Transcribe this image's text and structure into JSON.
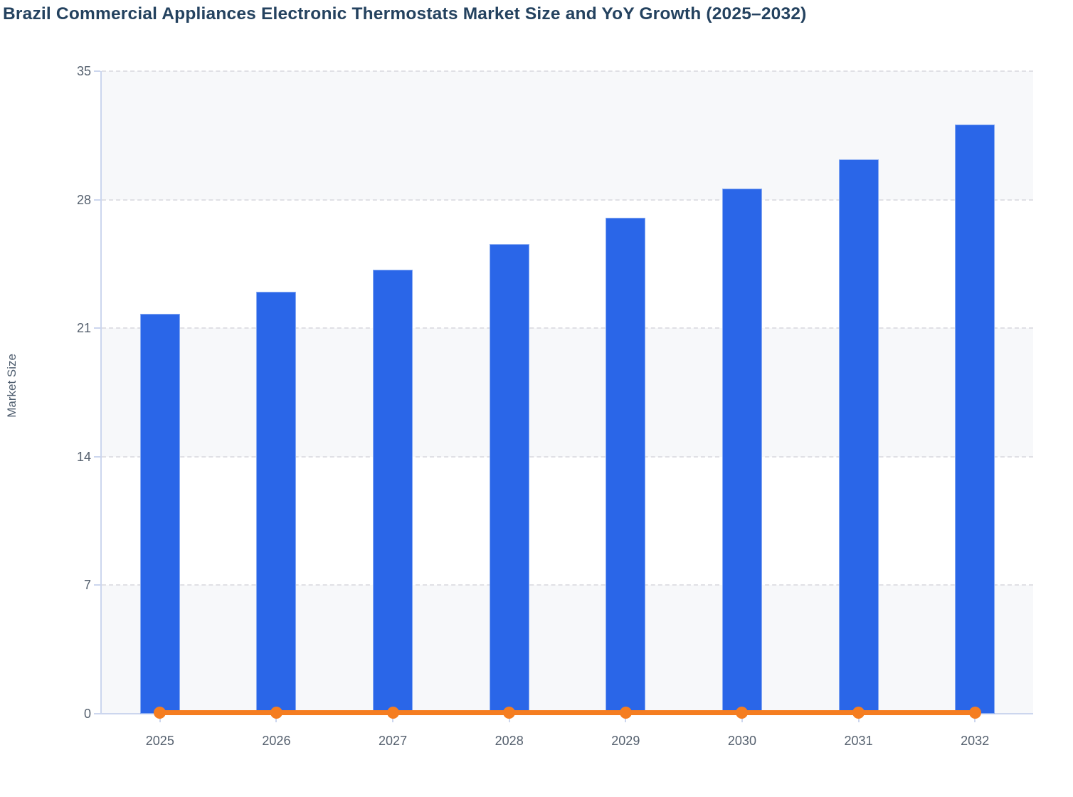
{
  "title": "Brazil Commercial Appliances Electronic Thermostats Market Size and YoY Growth (2025–2032)",
  "chart_data": {
    "type": "bar",
    "title": "Brazil Commercial Appliances Electronic Thermostats Market Size and YoY Growth (2025–2032)",
    "categories": [
      "2025",
      "2026",
      "2027",
      "2028",
      "2029",
      "2030",
      "2031",
      "2032"
    ],
    "series": [
      {
        "name": "Market Size",
        "type": "bar",
        "values": [
          21.8,
          23.0,
          24.2,
          25.6,
          27.0,
          28.6,
          30.2,
          32.1
        ]
      },
      {
        "name": "YoY Growth",
        "type": "line",
        "values": [
          0,
          0,
          0,
          0,
          0,
          0,
          0,
          0
        ]
      }
    ],
    "xlabel": "",
    "ylabel": "Market Size",
    "ylim": [
      0,
      35
    ],
    "yticks": [
      0,
      7,
      14,
      21,
      28,
      35
    ],
    "grid": "horizontal dashed gridlines with alternating shaded bands",
    "legend": "none",
    "colors": {
      "bar": "#2a66e8",
      "line": "#f57d20",
      "title_text": "#24425f",
      "tick_text": "#55606e",
      "axis_line": "#ccd6ee",
      "band_shaded": "#f7f8fa",
      "band_plain": "#ffffff",
      "gridline": "#e0e0e5"
    }
  }
}
